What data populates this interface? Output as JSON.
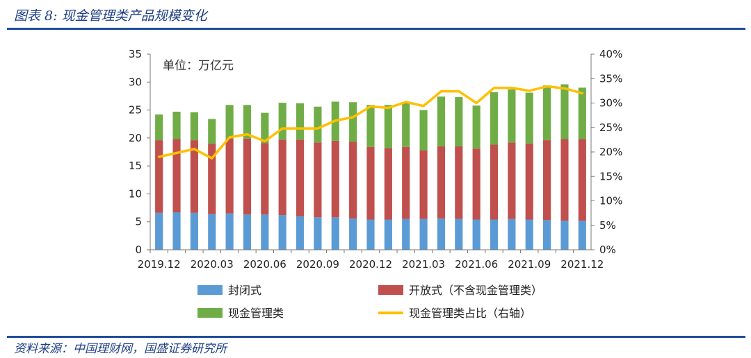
{
  "header": {
    "figure_title": "图表 8:  现金管理类产品规模变化"
  },
  "footer": {
    "source": "资料来源：中国理财网，国盛证券研究所"
  },
  "chart_data": {
    "type": "bar",
    "stacked": true,
    "unit_note": "单位：万亿元",
    "categories": [
      "2019.12",
      "2020.01",
      "2020.02",
      "2020.03",
      "2020.04",
      "2020.05",
      "2020.06",
      "2020.07",
      "2020.08",
      "2020.09",
      "2020.10",
      "2020.11",
      "2020.12",
      "2021.01",
      "2021.02",
      "2021.03",
      "2021.04",
      "2021.05",
      "2021.06",
      "2021.07",
      "2021.08",
      "2021.09",
      "2021.10",
      "2021.11",
      "2021.12"
    ],
    "x_tick_labels": [
      "2019.12",
      "2020.03",
      "2020.06",
      "2020.09",
      "2020.12",
      "2021.03",
      "2021.06",
      "2021.09",
      "2021.12"
    ],
    "x_tick_indices": [
      0,
      3,
      6,
      9,
      12,
      15,
      18,
      21,
      24
    ],
    "series": [
      {
        "name": "封闭式",
        "color": "#5b9bd5",
        "axis": "left",
        "values": [
          6.6,
          6.7,
          6.6,
          6.4,
          6.5,
          6.3,
          6.3,
          6.2,
          6.0,
          5.8,
          5.8,
          5.6,
          5.4,
          5.4,
          5.5,
          5.5,
          5.6,
          5.5,
          5.4,
          5.4,
          5.5,
          5.4,
          5.3,
          5.2,
          5.2
        ]
      },
      {
        "name": "开放式（不含现金管理类）",
        "color": "#c0504d",
        "axis": "left",
        "values": [
          13.0,
          13.1,
          13.0,
          12.6,
          13.4,
          13.6,
          12.8,
          13.5,
          13.7,
          13.4,
          13.7,
          13.7,
          13.0,
          12.8,
          12.9,
          12.3,
          12.9,
          13.0,
          12.7,
          13.4,
          13.7,
          13.6,
          14.3,
          14.6,
          14.6
        ]
      },
      {
        "name": "现金管理类",
        "color": "#70ad47",
        "axis": "left",
        "values": [
          4.6,
          4.9,
          5.0,
          4.4,
          6.0,
          6.0,
          5.4,
          6.6,
          6.5,
          6.4,
          7.0,
          7.1,
          7.5,
          7.7,
          8.0,
          7.2,
          8.9,
          8.8,
          7.7,
          9.4,
          9.5,
          9.1,
          9.8,
          9.8,
          9.2
        ]
      },
      {
        "name": "现金管理类占比（右轴）",
        "color": "#ffc000",
        "axis": "right",
        "type": "line",
        "values": [
          0.19,
          0.198,
          0.206,
          0.187,
          0.23,
          0.236,
          0.222,
          0.248,
          0.248,
          0.248,
          0.264,
          0.271,
          0.293,
          0.29,
          0.302,
          0.294,
          0.324,
          0.324,
          0.3,
          0.331,
          0.331,
          0.325,
          0.334,
          0.33,
          0.32
        ]
      }
    ],
    "y_left": {
      "min": 0,
      "max": 35,
      "step": 5,
      "ticks": [
        "0",
        "5",
        "10",
        "15",
        "20",
        "25",
        "30",
        "35"
      ]
    },
    "y_right": {
      "min": 0,
      "max": 0.4,
      "step": 0.05,
      "ticks": [
        "0%",
        "5%",
        "10%",
        "15%",
        "20%",
        "25%",
        "30%",
        "35%",
        "40%"
      ]
    },
    "grid": false,
    "legend_placement": "bottom"
  }
}
